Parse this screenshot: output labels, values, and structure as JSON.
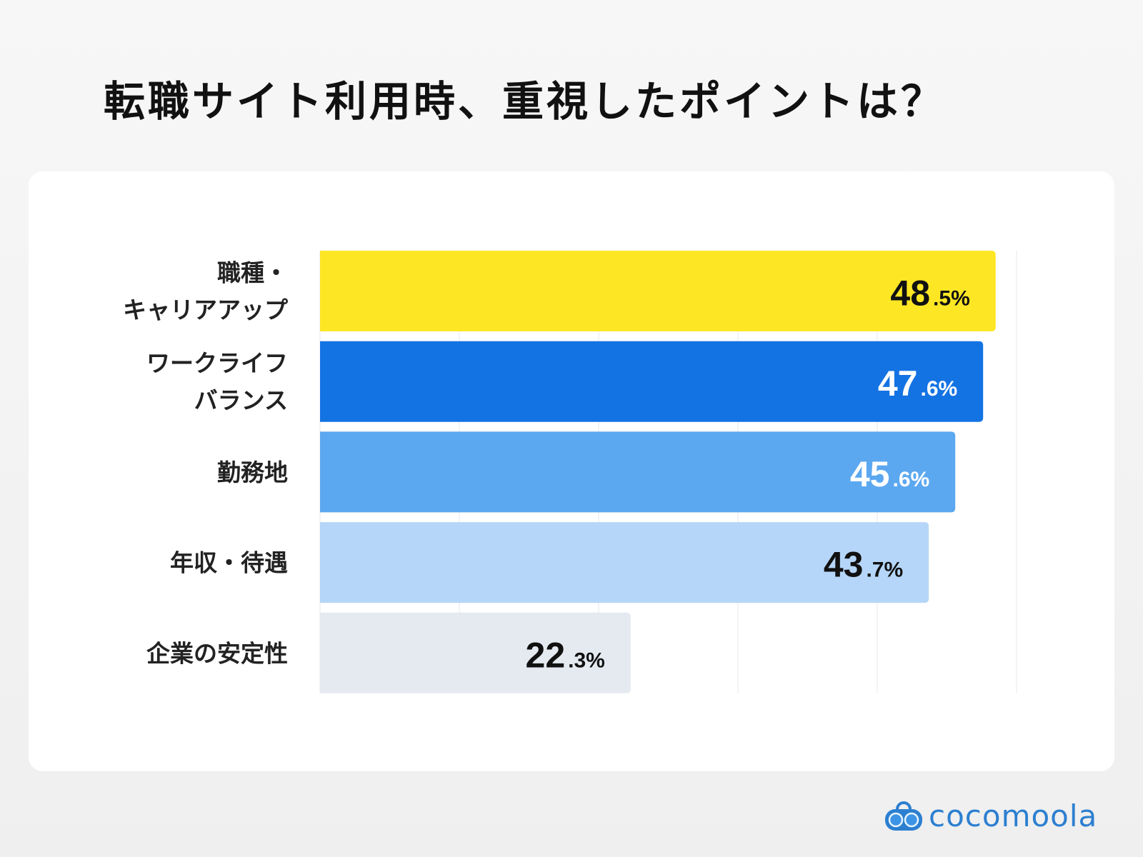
{
  "chart_data": {
    "type": "bar",
    "orientation": "horizontal",
    "title": "転職サイト利用時、重視したポイントは？",
    "categories": [
      [
        "職種・",
        "キャリアアップ"
      ],
      [
        "ワークライフ",
        "バランス"
      ],
      [
        "勤務地"
      ],
      [
        "年収・待遇"
      ],
      [
        "企業の安定性"
      ]
    ],
    "values": [
      48.5,
      47.6,
      45.6,
      43.7,
      22.3
    ],
    "value_labels": [
      {
        "int": "48",
        "dec": ".5%"
      },
      {
        "int": "47",
        "dec": ".6%"
      },
      {
        "int": "45",
        "dec": ".6%"
      },
      {
        "int": "43",
        "dec": ".7%"
      },
      {
        "int": "22",
        "dec": ".3%"
      }
    ],
    "bar_colors": [
      "#fde725",
      "#1473e3",
      "#5ca8f0",
      "#b5d6f8",
      "#e5eaf1"
    ],
    "label_colors": [
      "#111111",
      "#ffffff",
      "#ffffff",
      "#111111",
      "#111111"
    ],
    "xlim": [
      0,
      50
    ],
    "grid": true
  },
  "brand": {
    "name": "cocomoola",
    "color": "#2c7fd0"
  }
}
